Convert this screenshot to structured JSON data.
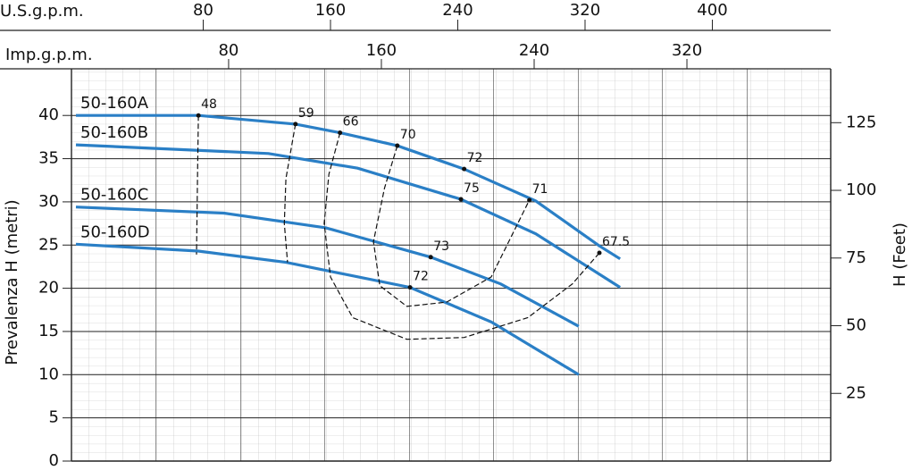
{
  "chart_data": {
    "type": "line",
    "x_axis_top": {
      "label": "U.S.g.p.m.",
      "xlim": [
        -2.8,
        474.4
      ],
      "xticks": [
        80,
        160,
        240,
        320,
        400
      ]
    },
    "x_axis_second": {
      "label": "Imp.g.p.m.",
      "xlim": [
        -2.3,
        395.3
      ],
      "xticks": [
        80,
        160,
        240,
        320
      ]
    },
    "ylabel": "Prevalenza H (metri)",
    "ylim": [
      0,
      45.4
    ],
    "yticks": [
      0,
      5,
      10,
      15,
      20,
      25,
      30,
      35,
      40
    ],
    "y2label": "H (Feet)",
    "y2lim": [
      0,
      144.9
    ],
    "y2ticks": [
      25,
      50,
      75,
      100,
      125
    ],
    "grid": true,
    "series": [
      {
        "name": "50-160A",
        "color": "#2a7fc6",
        "x": [
          0,
          77,
          138,
          166,
          202,
          244,
          289,
          329,
          342
        ],
        "values": [
          40.0,
          40.0,
          39.0,
          38.0,
          36.5,
          33.8,
          30.1,
          24.9,
          23.4
        ]
      },
      {
        "name": "50-160B",
        "color": "#2a7fc6",
        "x": [
          0,
          121,
          177,
          242,
          289,
          342
        ],
        "values": [
          36.6,
          35.6,
          33.9,
          30.3,
          26.3,
          20.1
        ]
      },
      {
        "name": "50-160C",
        "color": "#2a7fc6",
        "x": [
          0,
          93,
          157,
          223,
          267,
          316
        ],
        "values": [
          29.4,
          28.7,
          27.0,
          23.6,
          20.5,
          15.6
        ]
      },
      {
        "name": "50-160D",
        "color": "#2a7fc6",
        "x": [
          0,
          77,
          132,
          210,
          261,
          316
        ],
        "values": [
          25.1,
          24.3,
          23.0,
          20.1,
          16.1,
          10.0
        ]
      }
    ],
    "efficiency_points": {
      "labels": [
        "48",
        "59",
        "66",
        "70",
        "72",
        "75",
        "71",
        "73",
        "72",
        "67.5"
      ],
      "x": [
        77,
        138,
        166,
        202,
        244,
        242,
        285,
        223,
        210,
        329
      ],
      "y": [
        40.0,
        39.0,
        38.0,
        36.5,
        33.8,
        30.3,
        30.2,
        23.6,
        20.1,
        24.1
      ]
    },
    "efficiency_curves": [
      {
        "x": [
          77,
          76.4,
          75.8
        ],
        "y": [
          40.0,
          32.7,
          23.9
        ]
      },
      {
        "x": [
          138,
          132,
          131,
          133
        ],
        "y": [
          39.0,
          32.7,
          27.5,
          23.0
        ]
      },
      {
        "x": [
          166,
          159,
          156,
          160,
          174,
          208,
          244,
          284,
          312,
          329
        ],
        "y": [
          38.0,
          33.2,
          27.5,
          21.3,
          16.6,
          14.1,
          14.3,
          16.6,
          20.5,
          24.1
        ]
      },
      {
        "x": [
          202,
          194,
          187,
          191,
          208,
          233,
          261,
          285
        ],
        "y": [
          36.5,
          31.6,
          25.4,
          20.3,
          17.9,
          18.4,
          21.3,
          30.2
        ]
      }
    ]
  }
}
